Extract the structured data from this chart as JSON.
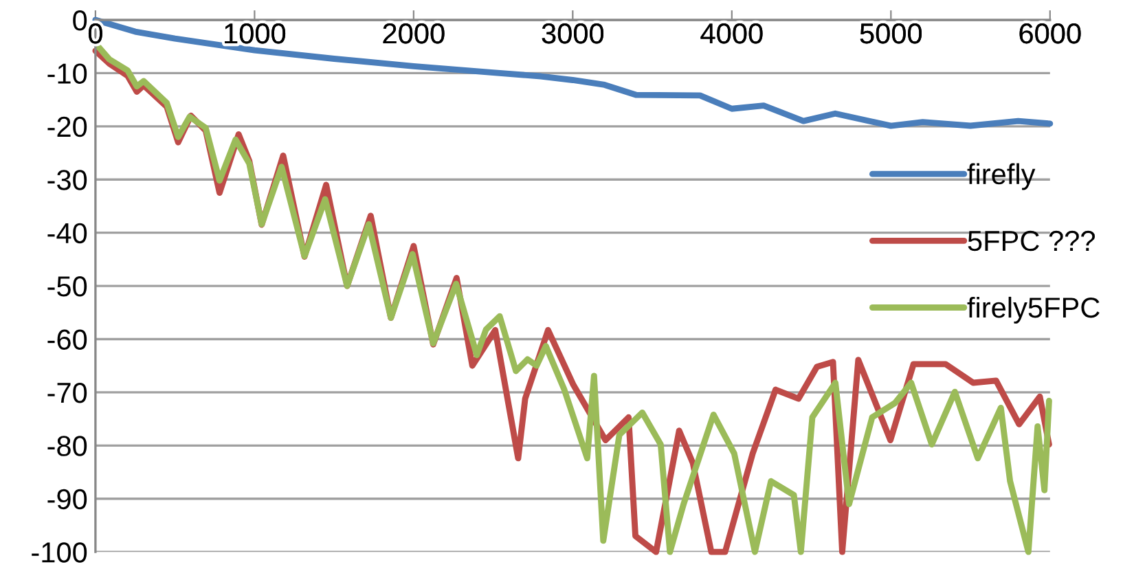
{
  "chart_data": {
    "type": "line",
    "xlim": [
      0,
      6000
    ],
    "ylim": [
      -100,
      0
    ],
    "xticks": [
      0,
      1000,
      2000,
      3000,
      4000,
      5000,
      6000
    ],
    "yticks": [
      -100,
      -90,
      -80,
      -70,
      -60,
      -50,
      -40,
      -30,
      -20,
      -10,
      0
    ],
    "grid": "y",
    "legend": "right",
    "marker": "none",
    "line_style": "solid",
    "series": [
      {
        "name": "firefly",
        "color": "#4a7ebb",
        "x": [
          0,
          250,
          500,
          1000,
          1500,
          2000,
          2500,
          2800,
          3000,
          3200,
          3400,
          3800,
          4000,
          4200,
          4450,
          4650,
          5000,
          5200,
          5500,
          5800,
          6000
        ],
        "values": [
          0,
          -2.2,
          -3.5,
          -5.7,
          -7.3,
          -8.7,
          -9.9,
          -10.6,
          -11.3,
          -12.2,
          -14.1,
          -14.2,
          -16.7,
          -16.1,
          -19.0,
          -17.6,
          -19.9,
          -19.2,
          -19.9,
          -19.0,
          -19.5
        ]
      },
      {
        "name": "5FPC ???",
        "color": "#be4b48",
        "x": [
          0,
          87,
          202,
          260,
          303,
          448,
          520,
          600,
          693,
          780,
          900,
          967,
          1045,
          1180,
          1314,
          1450,
          1582,
          1730,
          1857,
          2000,
          2123,
          2270,
          2369,
          2513,
          2657,
          2701,
          2845,
          3004,
          3206,
          3351,
          3394,
          3524,
          3669,
          3755,
          3871,
          3958,
          4131,
          4275,
          4419,
          4535,
          4636,
          4694,
          4795,
          4997,
          5142,
          5344,
          5517,
          5661,
          5806,
          5936,
          5994
        ],
        "values": [
          -5.8,
          -8.2,
          -10.5,
          -13.5,
          -12.3,
          -16.3,
          -23,
          -18,
          -20.8,
          -32.5,
          -21.5,
          -26.5,
          -38.5,
          -25.5,
          -44.5,
          -31,
          -50,
          -36.8,
          -56,
          -42.5,
          -61,
          -48.5,
          -65,
          -58.3,
          -82.4,
          -71.2,
          -58.3,
          -68.6,
          -79,
          -74.7,
          -97,
          -100,
          -77.2,
          -83.3,
          -100,
          -100,
          -81.5,
          -69.5,
          -71.2,
          -65.2,
          -64.3,
          -100,
          -63.9,
          -79,
          -64.7,
          -64.7,
          -68.2,
          -67.8,
          -76,
          -70.8,
          -79.8
        ]
      },
      {
        "name": "firely5FPC",
        "color": "#9bbb59",
        "x": [
          0,
          87,
          202,
          260,
          303,
          448,
          520,
          592,
          693,
          780,
          881,
          967,
          1045,
          1170,
          1314,
          1444,
          1582,
          1718,
          1857,
          1993,
          2123,
          2267,
          2397,
          2455,
          2541,
          2643,
          2716,
          2773,
          2831,
          2947,
          3091,
          3134,
          3192,
          3293,
          3437,
          3553,
          3611,
          3697,
          3885,
          4015,
          4145,
          4246,
          4390,
          4434,
          4506,
          4651,
          4737,
          4882,
          5026,
          5127,
          5257,
          5402,
          5546,
          5691,
          5749,
          5864,
          5922,
          5965,
          5994
        ],
        "values": [
          -4.4,
          -7.4,
          -9.5,
          -12.5,
          -11.5,
          -15.6,
          -22,
          -18.2,
          -20.3,
          -30.2,
          -22.5,
          -27,
          -38.4,
          -27.6,
          -44.4,
          -33.7,
          -50,
          -38.4,
          -56,
          -44,
          -60.8,
          -49.6,
          -63,
          -58.2,
          -55.7,
          -66,
          -63.8,
          -65,
          -61.3,
          -69.5,
          -82.4,
          -66.9,
          -97.9,
          -78,
          -73.8,
          -79.8,
          -100,
          -91,
          -74.2,
          -81.5,
          -100,
          -86.7,
          -89.3,
          -100,
          -74.7,
          -68.2,
          -91,
          -74.7,
          -72,
          -68.2,
          -79.8,
          -69.9,
          -82.4,
          -72.9,
          -86.7,
          -100,
          -76.4,
          -88.4,
          -71.6
        ]
      }
    ]
  }
}
